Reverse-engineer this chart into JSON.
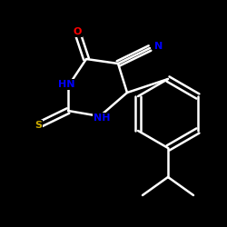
{
  "background": "#000000",
  "bond_color": "#ffffff",
  "atom_colors": {
    "O": "#ff0000",
    "N": "#0000ff",
    "S": "#ccaa00",
    "C": "#ffffff",
    "H": "#ffffff"
  },
  "bond_width": 1.8,
  "figsize": [
    2.5,
    2.5
  ],
  "dpi": 100
}
